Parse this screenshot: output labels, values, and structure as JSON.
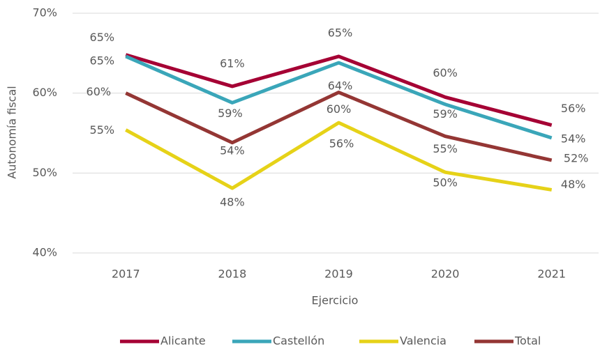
{
  "chart_data": {
    "type": "line",
    "categories": [
      "2017",
      "2018",
      "2019",
      "2020",
      "2021"
    ],
    "series": [
      {
        "name": "Alicante",
        "color": "#a50034",
        "values": [
          64.8,
          60.85,
          64.6,
          59.5,
          56.0
        ],
        "value_labels": [
          "65%",
          "61%",
          "65%",
          "60%",
          "56%"
        ]
      },
      {
        "name": "Castellón",
        "color": "#3aa6b9",
        "values": [
          64.6,
          58.8,
          63.8,
          58.6,
          54.4
        ],
        "value_labels": [
          "65%",
          "59%",
          "64%",
          "59%",
          "54%"
        ]
      },
      {
        "name": "Valencia",
        "color": "#e6d218",
        "values": [
          55.4,
          48.1,
          56.3,
          50.1,
          47.9
        ],
        "value_labels": [
          "55%",
          "48%",
          "56%",
          "50%",
          "48%"
        ]
      },
      {
        "name": "Total",
        "color": "#943634",
        "values": [
          60.0,
          53.8,
          60.1,
          54.6,
          51.6
        ],
        "value_labels": [
          "60%",
          "54%",
          "60%",
          "55%",
          "52%"
        ]
      }
    ],
    "xlabel": "Ejercicio",
    "ylabel": "Autonomía fiscal",
    "ylim": [
      40,
      70
    ],
    "yticks": [
      {
        "value": 40,
        "label": "40%"
      },
      {
        "value": 50,
        "label": "50%"
      },
      {
        "value": 60,
        "label": "60%"
      },
      {
        "value": 70,
        "label": "70%"
      }
    ],
    "grid": true,
    "legend": "bottom"
  }
}
